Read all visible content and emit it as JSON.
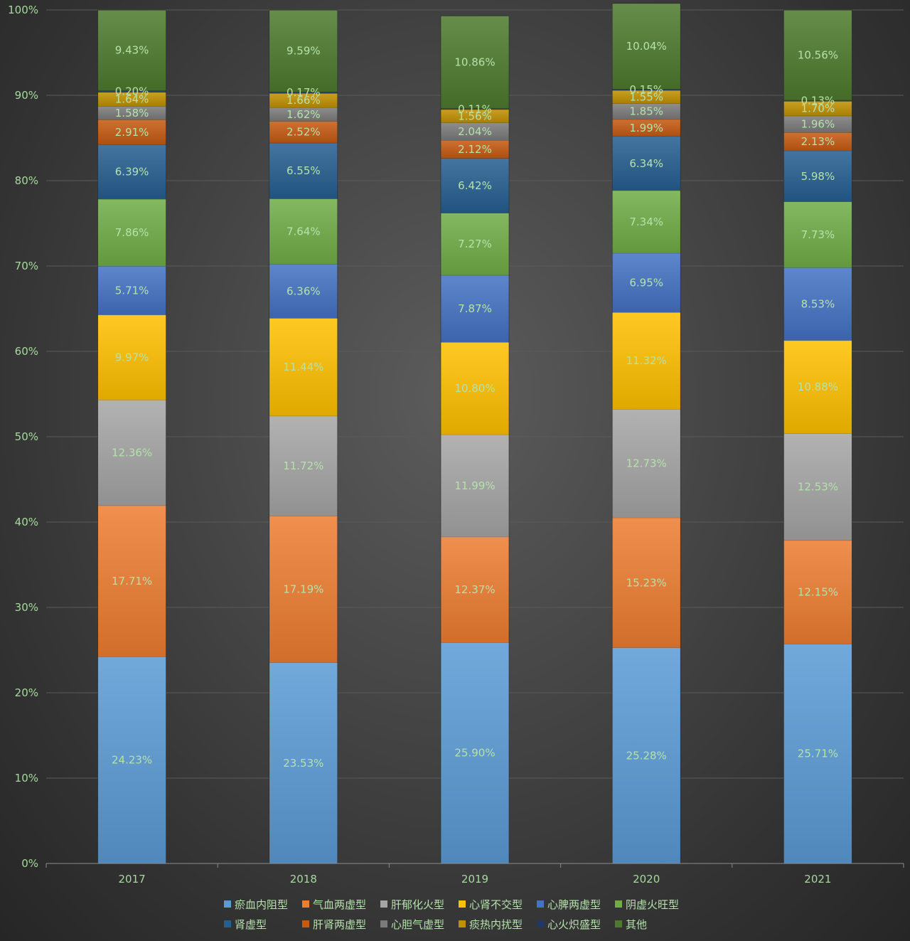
{
  "chart_data": {
    "type": "bar",
    "stacked": true,
    "percent": true,
    "categories": [
      "2017",
      "2018",
      "2019",
      "2020",
      "2021"
    ],
    "y_ticks": [
      "0%",
      "10%",
      "20%",
      "30%",
      "40%",
      "50%",
      "60%",
      "70%",
      "80%",
      "90%",
      "100%"
    ],
    "ylim": [
      0,
      100
    ],
    "grid": true,
    "legend_position": "bottom",
    "series": [
      {
        "name": "瘀血内阻型",
        "color": "#5b9bd5",
        "values": [
          24.23,
          23.53,
          25.9,
          25.28,
          25.71
        ],
        "labels": [
          "24.23%",
          "23.53%",
          "25.90%",
          "25.28%",
          "25.71%"
        ]
      },
      {
        "name": "气血两虚型",
        "color": "#ed7d31",
        "values": [
          17.71,
          17.19,
          12.37,
          15.23,
          12.15
        ],
        "labels": [
          "17.71%",
          "17.19%",
          "12.37%",
          "15.23%",
          "12.15%"
        ]
      },
      {
        "name": "肝郁化火型",
        "color": "#a5a5a5",
        "values": [
          12.36,
          11.72,
          11.99,
          12.73,
          12.53
        ],
        "labels": [
          "12.36%",
          "11.72%",
          "11.99%",
          "12.73%",
          "12.53%"
        ]
      },
      {
        "name": "心肾不交型",
        "color": "#ffc000",
        "values": [
          9.97,
          11.44,
          10.8,
          11.32,
          10.88
        ],
        "labels": [
          "9.97%",
          "11.44%",
          "10.80%",
          "11.32%",
          "10.88%"
        ]
      },
      {
        "name": "心脾两虚型",
        "color": "#4472c4",
        "values": [
          5.71,
          6.36,
          7.87,
          6.95,
          8.53
        ],
        "labels": [
          "5.71%",
          "6.36%",
          "7.87%",
          "6.95%",
          "8.53%"
        ]
      },
      {
        "name": "阴虚火旺型",
        "color": "#70ad47",
        "values": [
          7.86,
          7.64,
          7.27,
          7.34,
          7.73
        ],
        "labels": [
          "7.86%",
          "7.64%",
          "7.27%",
          "7.34%",
          "7.73%"
        ]
      },
      {
        "name": "肾虚型",
        "color": "#255e91",
        "values": [
          6.39,
          6.55,
          6.42,
          6.34,
          5.98
        ],
        "labels": [
          "6.39%",
          "6.55%",
          "6.42%",
          "6.34%",
          "5.98%"
        ]
      },
      {
        "name": "肝肾两虚型",
        "color": "#c55a11",
        "values": [
          2.91,
          2.52,
          2.12,
          1.99,
          2.13
        ],
        "labels": [
          "2.91%",
          "2.52%",
          "2.12%",
          "1.99%",
          "2.13%"
        ]
      },
      {
        "name": "心胆气虚型",
        "color": "#7b7b7b",
        "values": [
          1.58,
          1.62,
          2.04,
          1.85,
          1.96
        ],
        "labels": [
          "1.58%",
          "1.62%",
          "2.04%",
          "1.85%",
          "1.96%"
        ]
      },
      {
        "name": "痰热内扰型",
        "color": "#bf9000",
        "values": [
          1.64,
          1.66,
          1.56,
          1.55,
          1.7
        ],
        "labels": [
          "1.64%",
          "1.66%",
          "1.56%",
          "1.55%",
          "1.70%"
        ]
      },
      {
        "name": "心火炽盛型",
        "color": "#203864",
        "values": [
          0.2,
          0.17,
          0.11,
          0.15,
          0.13
        ],
        "labels": [
          "0.20%",
          "0.17%",
          "0.11%",
          "0.15%",
          "0.13%"
        ]
      },
      {
        "name": "其他",
        "color": "#4e7a2e",
        "values": [
          9.43,
          9.59,
          10.86,
          10.04,
          10.56
        ],
        "labels": [
          "9.43%",
          "9.59%",
          "10.86%",
          "10.04%",
          "10.56%"
        ]
      }
    ]
  }
}
